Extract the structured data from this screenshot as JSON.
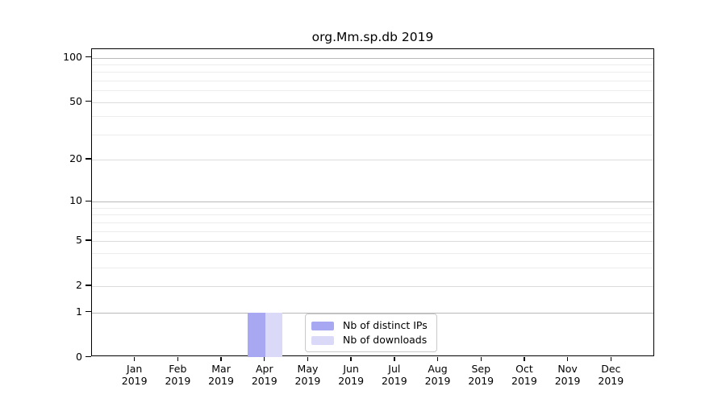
{
  "title": "org.Mm.sp.db 2019",
  "chart_data": {
    "type": "bar",
    "title": "org.Mm.sp.db 2019",
    "categories": [
      "Jan 2019",
      "Feb 2019",
      "Mar 2019",
      "Apr 2019",
      "May 2019",
      "Jun 2019",
      "Jul 2019",
      "Aug 2019",
      "Sep 2019",
      "Oct 2019",
      "Nov 2019",
      "Dec 2019"
    ],
    "series": [
      {
        "name": "Nb of distinct IPs",
        "color": "#a8a8f2",
        "values": [
          0,
          0,
          0,
          1,
          0,
          0,
          0,
          0,
          0,
          0,
          0,
          0
        ]
      },
      {
        "name": "Nb of downloads",
        "color": "#dadaf8",
        "values": [
          0,
          0,
          0,
          1,
          0,
          0,
          0,
          0,
          0,
          0,
          0,
          0
        ]
      }
    ],
    "xlabel": "",
    "ylabel": "",
    "yscale": "log1p",
    "ylim": [
      0,
      100
    ],
    "y_major_ticks": [
      0,
      1,
      2,
      5,
      10,
      20,
      50,
      100
    ],
    "y_minor_gridlines": [
      3,
      4,
      6,
      7,
      8,
      9,
      30,
      40,
      60,
      70,
      80,
      90
    ],
    "grid": "horizontal",
    "legend_position": "inside-bottom-center"
  },
  "legend": {
    "items": [
      {
        "label": "Nb of distinct IPs",
        "color": "#a8a8f2"
      },
      {
        "label": "Nb of downloads",
        "color": "#dadaf8"
      }
    ]
  }
}
